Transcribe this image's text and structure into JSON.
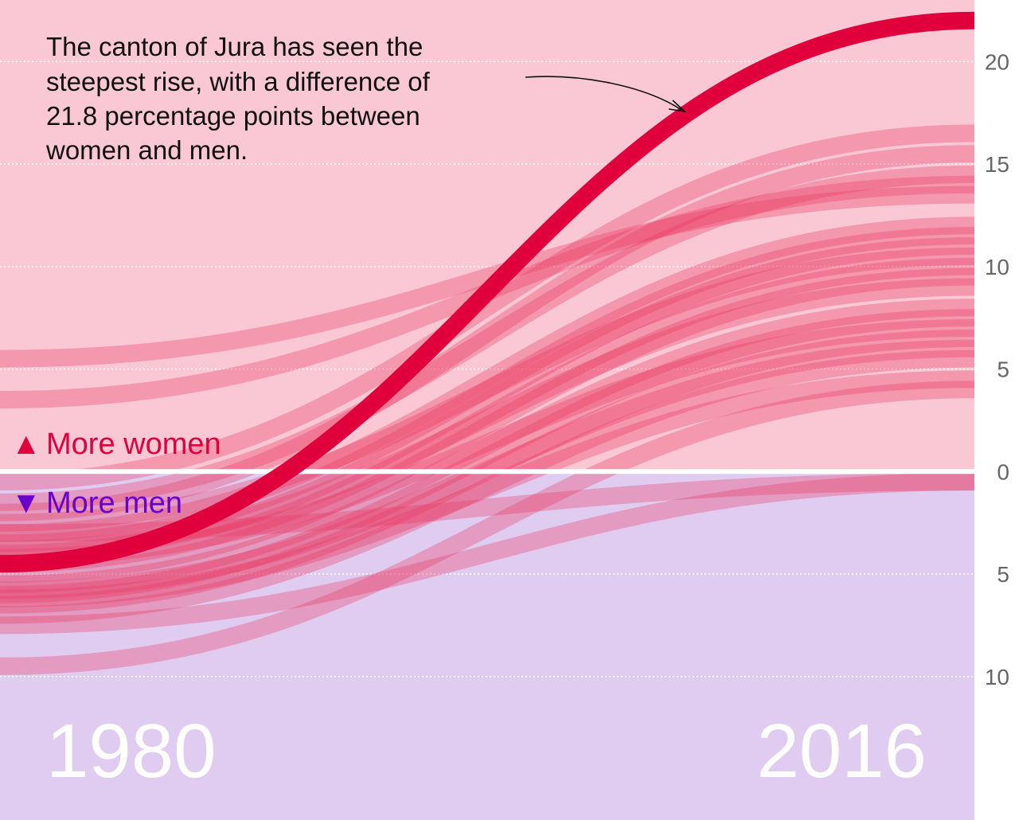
{
  "chart_data": {
    "type": "line",
    "title": "",
    "xlabel": "",
    "ylabel": "",
    "x": [
      "1980",
      "2016"
    ],
    "ylim": [
      -17,
      23
    ],
    "y_axis": {
      "ticks": [
        -10,
        -5,
        0,
        5,
        10,
        15,
        20
      ],
      "tick_labels": [
        "10",
        "5",
        "0",
        "5",
        "10",
        "15",
        "20"
      ],
      "grid": true,
      "position": "right"
    },
    "regions": {
      "positive": {
        "label": "More women",
        "marker": "▲",
        "color": "#f9c8d4",
        "text_color": "#e0003c"
      },
      "negative": {
        "label": "More men",
        "marker": "▼",
        "color": "#e0ccf0",
        "text_color": "#6a00cc"
      }
    },
    "year_labels": {
      "start": "1980",
      "end": "2016"
    },
    "highlight": {
      "name": "Jura",
      "values": [
        -4.5,
        22
      ],
      "color": "#e0003c"
    },
    "series_color": "#e8355e",
    "series": [
      {
        "values": [
          5.5,
          13.5
        ]
      },
      {
        "values": [
          3.5,
          14.0
        ]
      },
      {
        "values": [
          -0.5,
          16.5
        ]
      },
      {
        "values": [
          -2.0,
          15.5
        ]
      },
      {
        "values": [
          -1.5,
          14.5
        ]
      },
      {
        "values": [
          -3.0,
          12.0
        ]
      },
      {
        "values": [
          -3.5,
          11.5
        ]
      },
      {
        "values": [
          -4.0,
          11.0
        ]
      },
      {
        "values": [
          -2.5,
          10.5
        ]
      },
      {
        "values": [
          -4.5,
          10.0
        ]
      },
      {
        "values": [
          -5.0,
          9.5
        ]
      },
      {
        "values": [
          -3.8,
          9.0
        ]
      },
      {
        "values": [
          -5.5,
          8.0
        ]
      },
      {
        "values": [
          -6.0,
          7.5
        ]
      },
      {
        "values": [
          -4.2,
          7.0
        ]
      },
      {
        "values": [
          -6.5,
          6.5
        ]
      },
      {
        "values": [
          -5.8,
          6.0
        ]
      },
      {
        "values": [
          -7.0,
          5.5
        ]
      },
      {
        "values": [
          -6.2,
          4.5
        ]
      },
      {
        "values": [
          -9.5,
          4.0
        ]
      },
      {
        "values": [
          -3.0,
          -0.5
        ]
      },
      {
        "values": [
          -7.5,
          -0.5
        ]
      }
    ],
    "annotation": {
      "lines": [
        "The canton of Jura has seen the",
        "steepest rise, with a difference of",
        "21.8 percentage points between",
        "women and men."
      ]
    }
  }
}
